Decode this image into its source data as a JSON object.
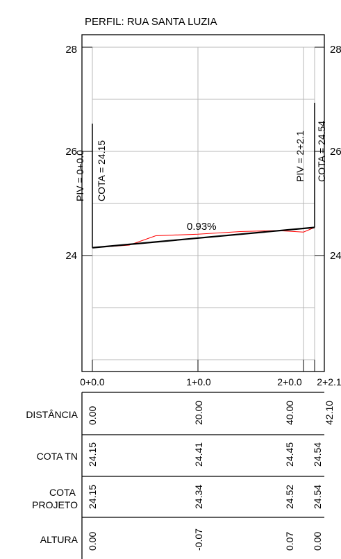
{
  "title": "PERFIL: RUA SANTA LUZIA",
  "y_axis": {
    "left_labels": [
      "28",
      "26",
      "24"
    ],
    "right_labels": [
      "28",
      "26",
      "24"
    ]
  },
  "x_axis": {
    "labels": [
      "0+0.0",
      "1+0.0",
      "2+0.0",
      "2+2.1"
    ]
  },
  "piv_start": {
    "station": "PIV = 0+0.0",
    "elevation": "COTA =  24.15"
  },
  "piv_end": {
    "station": "PIV = 2+2.1",
    "elevation": "COTA =  24.54"
  },
  "grade_label": "0.93%",
  "colors": {
    "terrain": "#ff0000",
    "design": "#000000",
    "grid": "#b8b8b8",
    "frame": "#000000"
  },
  "chart_data": {
    "type": "line",
    "xlabel": "",
    "ylabel": "",
    "xlim": [
      0,
      42.1
    ],
    "ylim": [
      22,
      28
    ],
    "series": [
      {
        "name": "",
        "x": [
          0,
          7,
          12,
          20,
          28,
          35,
          40,
          42.1
        ],
        "y": [
          24.15,
          24.2,
          24.38,
          24.41,
          24.46,
          24.48,
          24.45,
          24.54
        ]
      },
      {
        "name": "",
        "x": [
          0,
          42.1
        ],
        "y": [
          24.15,
          24.54
        ]
      }
    ]
  },
  "table": {
    "rows": [
      {
        "label": "DISTÂNCIA",
        "values": [
          "0.00",
          "20.00",
          "40.00",
          "42.10"
        ]
      },
      {
        "label": "COTA TN",
        "values": [
          "24.15",
          "24.41",
          "24.45",
          "24.54"
        ]
      },
      {
        "label": "COTA\nPROJETO",
        "values": [
          "24.15",
          "24.34",
          "24.52",
          "24.54"
        ]
      },
      {
        "label": "ALTURA",
        "values": [
          "0.00",
          "-0.07",
          "0.07",
          "0.00"
        ]
      }
    ]
  }
}
